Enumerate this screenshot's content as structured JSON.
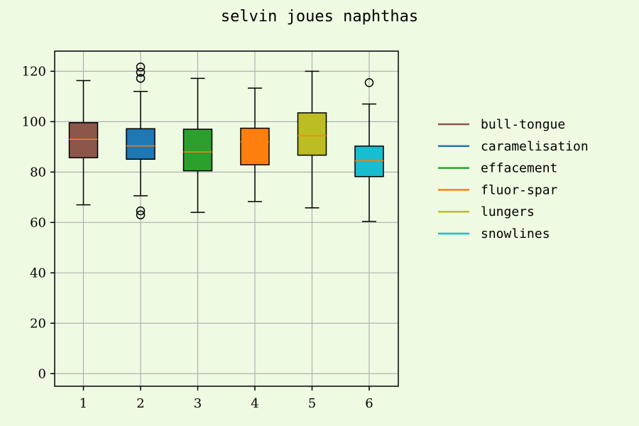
{
  "chart_data": {
    "type": "box",
    "title": "selvin joues naphthas",
    "xlabel": "",
    "ylabel": "",
    "ylim": [
      -5,
      128
    ],
    "yticks": [
      0,
      20,
      40,
      60,
      80,
      100,
      120
    ],
    "categories": [
      "1",
      "2",
      "3",
      "4",
      "5",
      "6"
    ],
    "grid": true,
    "legend_position": "right",
    "median_color": "#ff7f0e",
    "series": [
      {
        "name": "bull-tongue",
        "color": "#8c564b",
        "whisker_low": 67,
        "q1": 85.7,
        "median": 93,
        "q3": 99.6,
        "whisker_high": 116.3,
        "outliers": []
      },
      {
        "name": "caramelisation",
        "color": "#1f77b4",
        "whisker_low": 70.6,
        "q1": 85.1,
        "median": 90.4,
        "q3": 97.2,
        "whisker_high": 112,
        "outliers": [
          121.7,
          119.6,
          117.2,
          64.6,
          63
        ]
      },
      {
        "name": "effacement",
        "color": "#2ca02c",
        "whisker_low": 64,
        "q1": 80.5,
        "median": 88,
        "q3": 97,
        "whisker_high": 117.2,
        "outliers": []
      },
      {
        "name": "fluor-spar",
        "color": "#ff7f0e",
        "whisker_low": 68.3,
        "q1": 82.9,
        "median": 92,
        "q3": 97.4,
        "whisker_high": 113.3,
        "outliers": []
      },
      {
        "name": "lungers",
        "color": "#bcbd22",
        "whisker_low": 65.8,
        "q1": 86.7,
        "median": 94.4,
        "q3": 103.5,
        "whisker_high": 120,
        "outliers": []
      },
      {
        "name": "snowlines",
        "color": "#17becf",
        "whisker_low": 60.4,
        "q1": 78.2,
        "median": 84.5,
        "q3": 90.3,
        "whisker_high": 107,
        "outliers": [
          115.5
        ]
      }
    ]
  }
}
